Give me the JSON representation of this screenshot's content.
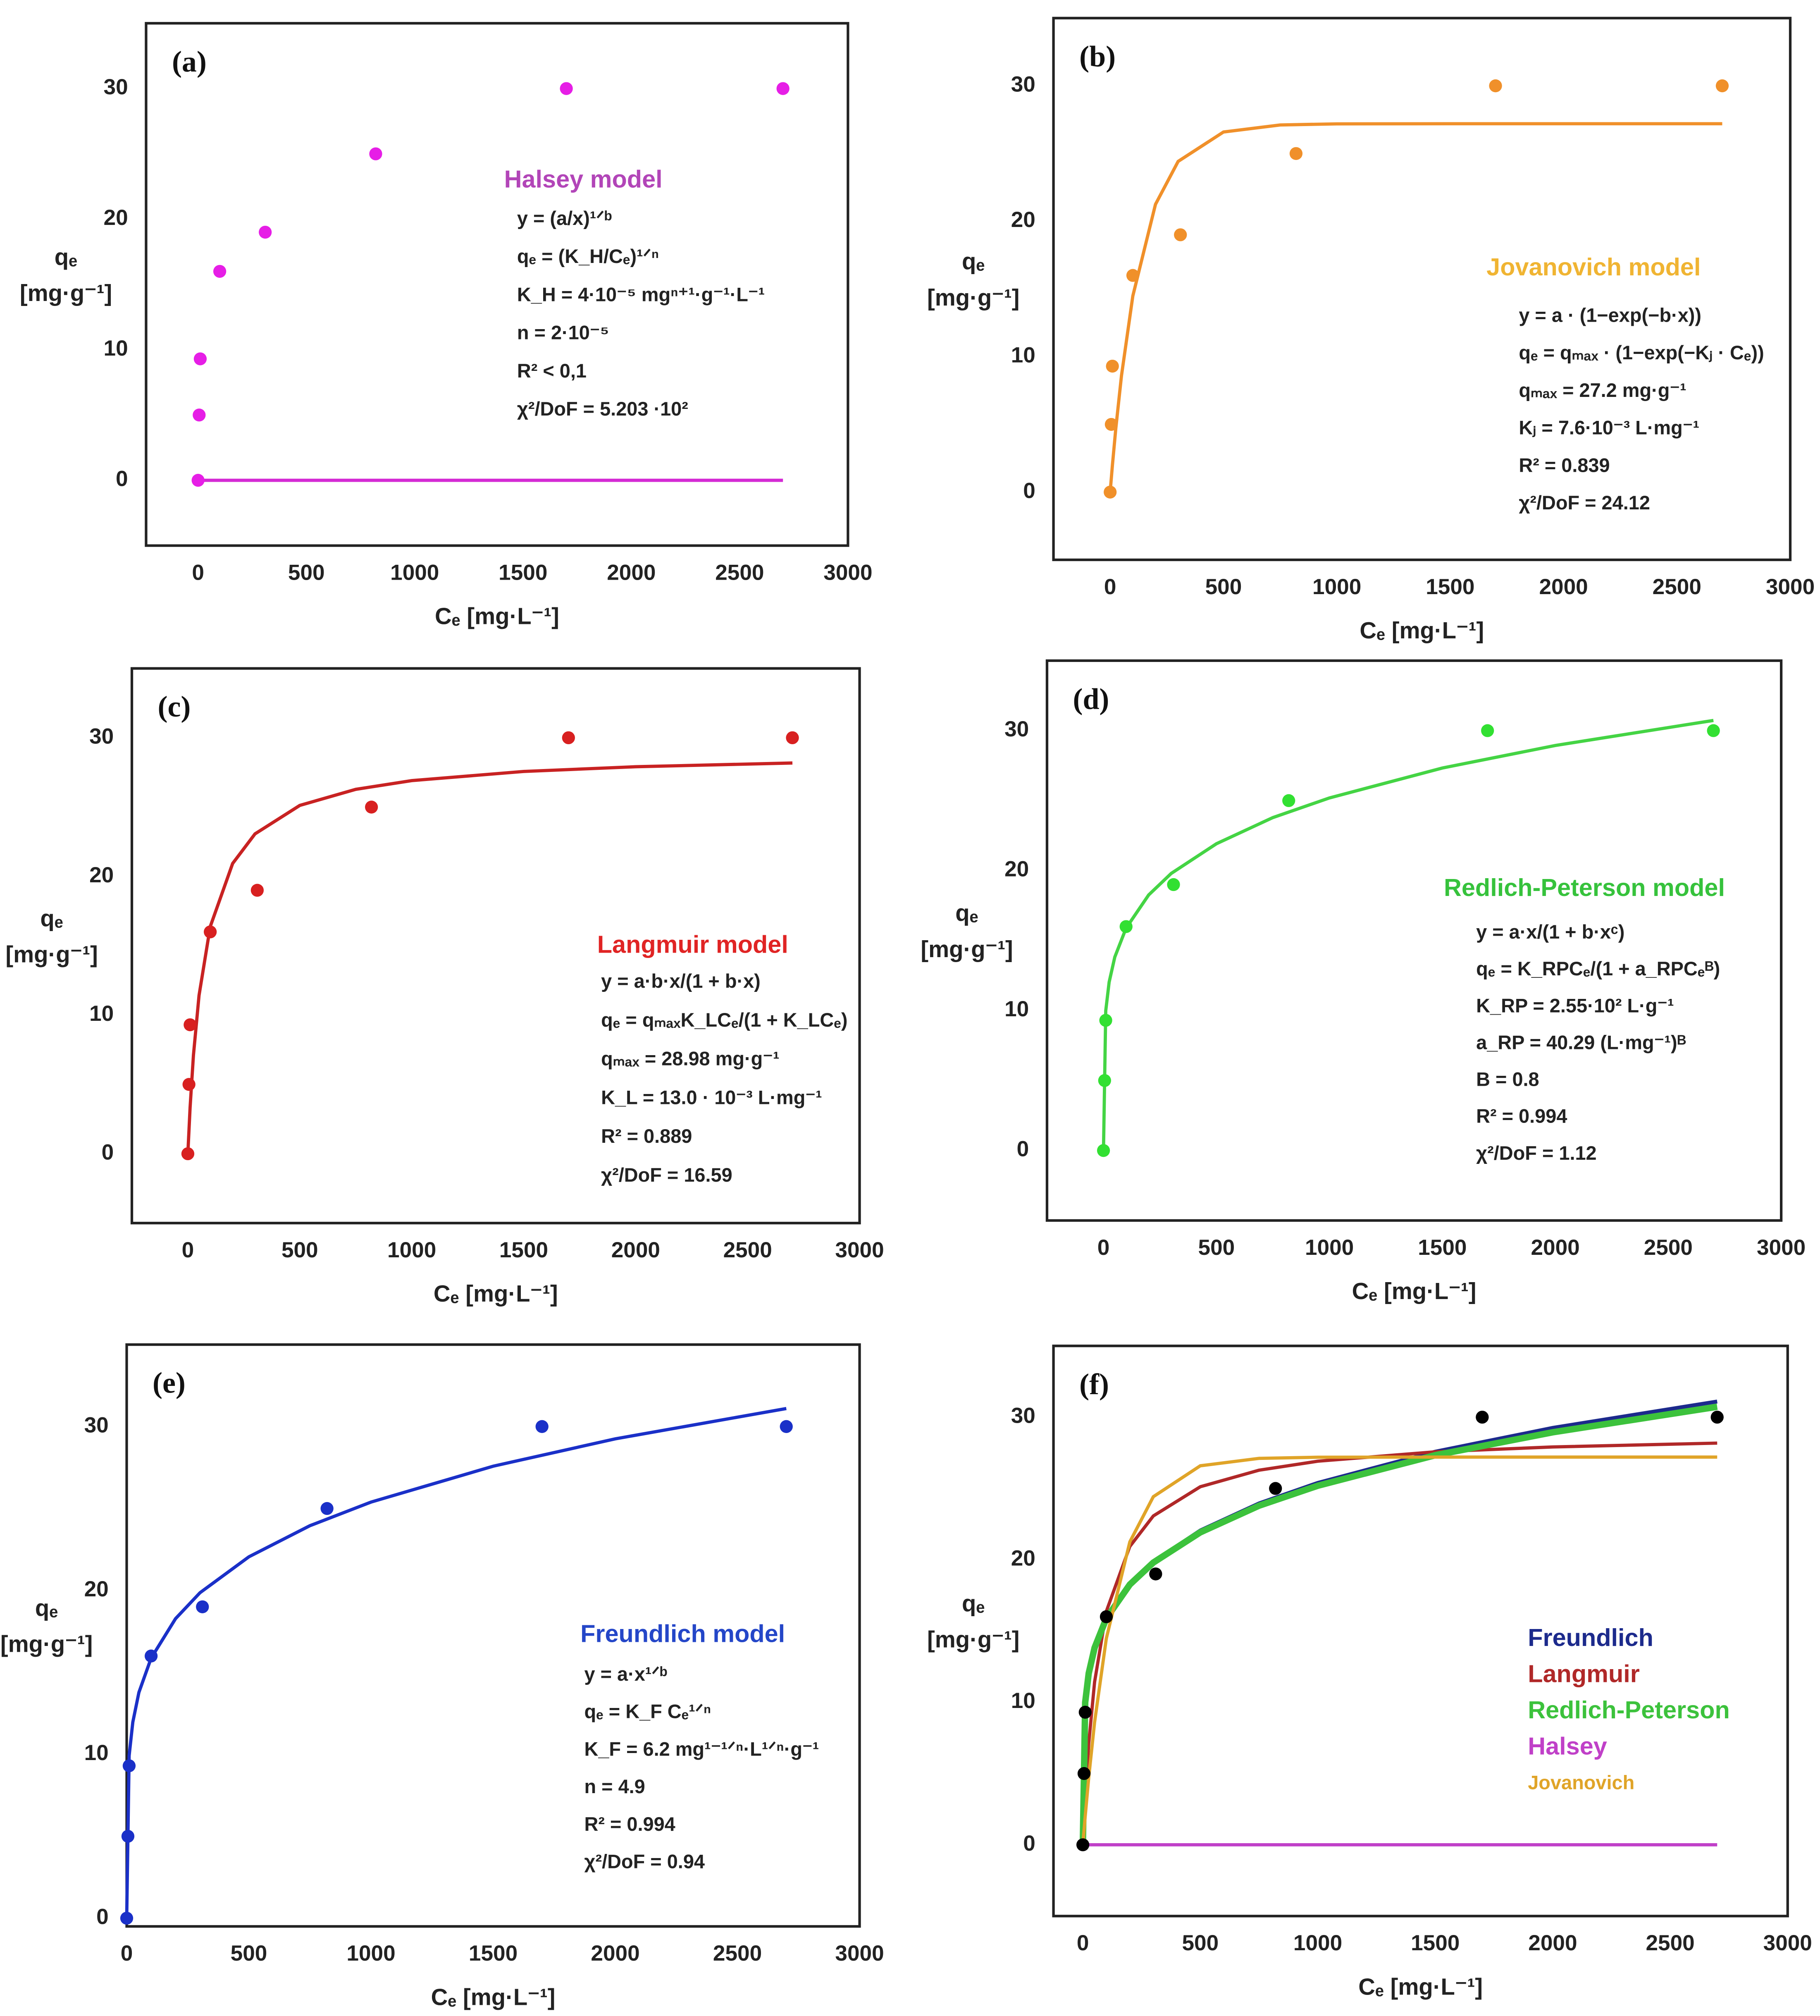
{
  "chart_data": [
    {
      "type": "scatter",
      "label": "(a)",
      "xlabel": "Cₑ [mg·L⁻¹]",
      "ylabel": [
        "qₑ",
        "[mg·g⁻¹]"
      ],
      "xlim": [
        -240,
        3000
      ],
      "ylim": [
        -5,
        35
      ],
      "xticks": [
        0,
        500,
        1000,
        1500,
        2000,
        2500,
        3000
      ],
      "yticks": [
        0,
        10,
        20,
        30
      ],
      "points": {
        "color": "#e61ee6",
        "x": [
          0,
          5,
          10,
          100,
          310,
          820,
          1700,
          2700
        ],
        "values": [
          0,
          5,
          9.3,
          16,
          19,
          25,
          30,
          30
        ]
      },
      "fit": {
        "color": "#d42ad4",
        "x": [
          0,
          2700
        ],
        "values": [
          0,
          0
        ]
      },
      "model": "Halsey model",
      "model_color": "#b245b8",
      "annotations": [
        "y = (a/x)¹ᐟᵇ",
        "qₑ = (K_H/Cₑ)¹ᐟⁿ",
        "K_H = 4·10⁻⁵ mgⁿ⁺¹·g⁻¹·L⁻¹",
        "n = 2·10⁻⁵",
        "R² < 0,1",
        "χ²/DoF = 5.203 ·10²"
      ]
    },
    {
      "type": "scatter",
      "label": "(b)",
      "xlabel": "Cₑ [mg·L⁻¹]",
      "ylabel": [
        "qₑ",
        "[mg·g⁻¹]"
      ],
      "xlim": [
        -250,
        3000
      ],
      "ylim": [
        -5,
        35
      ],
      "xticks": [
        0,
        500,
        1000,
        1500,
        2000,
        2500,
        3000
      ],
      "yticks": [
        0,
        10,
        20,
        30
      ],
      "points": {
        "color": "#f0902a",
        "x": [
          0,
          5,
          10,
          100,
          310,
          820,
          1700,
          2700
        ],
        "values": [
          0,
          5,
          9.3,
          16,
          19,
          25,
          30,
          30
        ]
      },
      "fit": {
        "color": "#f0902a",
        "x": [
          0,
          10,
          25,
          50,
          100,
          200,
          300,
          500,
          750,
          1000,
          1500,
          2000,
          2700
        ],
        "values": [
          0,
          1.99,
          4.71,
          8.6,
          14.48,
          21.25,
          24.42,
          26.59,
          27.11,
          27.19,
          27.2,
          27.2,
          27.2
        ]
      },
      "model": "Jovanovich model",
      "model_color": "#f0b432",
      "annotations": [
        "y = a · (1−exp(−b·x))",
        "qₑ = qₘₐₓ · (1−exp(−Kⱼ · Cₑ))",
        "qₘₐₓ = 27.2 mg·g⁻¹",
        "Kⱼ = 7.6·10⁻³ L·mg⁻¹",
        "R² = 0.839",
        "χ²/DoF = 24.12"
      ]
    },
    {
      "type": "scatter",
      "label": "(c)",
      "xlabel": "Cₑ [mg·L⁻¹]",
      "ylabel": [
        "qₑ",
        "[mg·g⁻¹]"
      ],
      "xlim": [
        -250,
        3000
      ],
      "ylim": [
        -5,
        35
      ],
      "xticks": [
        0,
        500,
        1000,
        1500,
        2000,
        2500,
        3000
      ],
      "yticks": [
        0,
        10,
        20,
        30
      ],
      "points": {
        "color": "#d82020",
        "x": [
          0,
          5,
          10,
          100,
          310,
          820,
          1700,
          2700
        ],
        "values": [
          0,
          5,
          9.3,
          16,
          19,
          25,
          30,
          30
        ]
      },
      "fit": {
        "color": "#c82222",
        "x": [
          0,
          10,
          25,
          50,
          100,
          200,
          300,
          500,
          750,
          1000,
          1500,
          2000,
          2700
        ],
        "values": [
          0,
          3.33,
          7.11,
          11.42,
          16.38,
          20.93,
          23.07,
          25.12,
          26.28,
          26.91,
          27.57,
          27.91,
          28.18
        ]
      },
      "model": "Langmuir model",
      "model_color": "#e02424",
      "annotations": [
        "y = a·b·x/(1 + b·x)",
        "qₑ = qₘₐₓK_LCₑ/(1 + K_LCₑ)",
        "qₘₐₓ = 28.98 mg·g⁻¹",
        "K_L = 13.0 · 10⁻³ L·mg⁻¹",
        "R² = 0.889",
        "χ²/DoF = 16.59"
      ]
    },
    {
      "type": "scatter",
      "label": "(d)",
      "xlabel": "Cₑ [mg·L⁻¹]",
      "ylabel": [
        "qₑ",
        "[mg·g⁻¹]"
      ],
      "xlim": [
        -250,
        3000
      ],
      "ylim": [
        -5,
        35
      ],
      "xticks": [
        0,
        500,
        1000,
        1500,
        2000,
        2500,
        3000
      ],
      "yticks": [
        0,
        10,
        20,
        30
      ],
      "points": {
        "color": "#32e032",
        "x": [
          0,
          5,
          10,
          100,
          310,
          820,
          1700,
          2700
        ],
        "values": [
          0,
          5,
          9.3,
          16,
          19,
          25,
          30,
          30
        ]
      },
      "fit": {
        "color": "#44d444",
        "x": [
          0,
          10,
          25,
          50,
          100,
          200,
          300,
          500,
          750,
          1000,
          1500,
          2000,
          2700
        ],
        "values": [
          0,
          9.99,
          12.03,
          13.82,
          15.89,
          18.26,
          19.8,
          21.92,
          23.79,
          25.19,
          27.33,
          28.94,
          30.73
        ]
      },
      "model": "Redlich-Peterson model",
      "model_color": "#36c23c",
      "annotations": [
        "y = a·x/(1 + b·xᶜ)",
        "qₑ = K_RPCₑ/(1 + a_RPCₑᴮ)",
        "K_RP = 2.55·10² L·g⁻¹",
        "a_RP = 40.29 (L·mg⁻¹)ᴮ",
        "B = 0.8",
        "R² = 0.994",
        "χ²/DoF = 1.12"
      ]
    },
    {
      "type": "scatter",
      "label": "(e)",
      "xlabel": "Cₑ [mg·L⁻¹]",
      "ylabel": [
        "qₑ",
        "[mg·g⁻¹]"
      ],
      "xlim": [
        0,
        3000
      ],
      "ylim": [
        -0.5,
        35
      ],
      "xticks": [
        0,
        500,
        1000,
        1500,
        2000,
        2500,
        3000
      ],
      "yticks": [
        0,
        10,
        20,
        30
      ],
      "points": {
        "color": "#1a30c8",
        "x": [
          0,
          5,
          10,
          100,
          310,
          820,
          1700,
          2700
        ],
        "values": [
          0,
          5,
          9.3,
          16,
          19,
          25,
          30,
          30
        ]
      },
      "fit": {
        "color": "#1a30c8",
        "x": [
          0,
          10,
          25,
          50,
          100,
          200,
          300,
          500,
          750,
          1000,
          1500,
          2000,
          2700
        ],
        "values": [
          0,
          9.92,
          11.96,
          13.78,
          15.87,
          18.28,
          19.86,
          22.05,
          23.95,
          25.39,
          27.58,
          29.25,
          31.1
        ]
      },
      "model": "Freundlich model",
      "model_color": "#2446c8",
      "annotations": [
        "y = a·x¹ᐟᵇ",
        "qₑ = K_F Cₑ¹ᐟⁿ",
        "K_F = 6.2 mg¹⁻¹ᐟⁿ·L¹ᐟⁿ·g⁻¹",
        "n = 4.9",
        "R² = 0.994",
        "χ²/DoF = 0.94"
      ]
    },
    {
      "type": "scatter",
      "label": "(f)",
      "xlabel": "Cₑ [mg·L⁻¹]",
      "ylabel": [
        "qₑ",
        "[mg·g⁻¹]"
      ],
      "xlim": [
        -125,
        3000
      ],
      "ylim": [
        -5,
        35
      ],
      "xticks": [
        0,
        500,
        1000,
        1500,
        2000,
        2500,
        3000
      ],
      "yticks": [
        0,
        10,
        20,
        30
      ],
      "points": {
        "color": "#000000",
        "x": [
          0,
          5,
          10,
          100,
          310,
          820,
          1700,
          2700
        ],
        "values": [
          0,
          5,
          9.3,
          16,
          19,
          25,
          30,
          30
        ]
      },
      "series": [
        {
          "name": "Freundlich",
          "color": "#1c2a8c",
          "x": [
            0,
            10,
            25,
            50,
            100,
            200,
            300,
            500,
            750,
            1000,
            1500,
            2000,
            2700
          ],
          "values": [
            0,
            9.92,
            11.96,
            13.78,
            15.87,
            18.28,
            19.86,
            22.05,
            23.95,
            25.39,
            27.58,
            29.25,
            31.1
          ]
        },
        {
          "name": "Langmuir",
          "color": "#b02828",
          "x": [
            0,
            10,
            25,
            50,
            100,
            200,
            300,
            500,
            750,
            1000,
            1500,
            2000,
            2700
          ],
          "values": [
            0,
            3.33,
            7.11,
            11.42,
            16.38,
            20.93,
            23.07,
            25.12,
            26.28,
            26.91,
            27.57,
            27.91,
            28.18
          ]
        },
        {
          "name": "Redlich-Peterson",
          "color": "#3cc23c",
          "x": [
            0,
            10,
            25,
            50,
            100,
            200,
            300,
            500,
            750,
            1000,
            1500,
            2000,
            2700
          ],
          "values": [
            0,
            9.99,
            12.03,
            13.82,
            15.89,
            18.26,
            19.8,
            21.92,
            23.79,
            25.19,
            27.33,
            28.94,
            30.73
          ]
        },
        {
          "name": "Halsey",
          "color": "#c040c8",
          "x": [
            0,
            2700
          ],
          "values": [
            0,
            0
          ]
        },
        {
          "name": "Jovanovich",
          "color": "#e0a428",
          "x": [
            0,
            10,
            25,
            50,
            100,
            200,
            300,
            500,
            750,
            1000,
            1500,
            2000,
            2700
          ],
          "values": [
            0,
            1.99,
            4.71,
            8.6,
            14.48,
            21.25,
            24.42,
            26.59,
            27.11,
            27.19,
            27.2,
            27.2,
            27.2
          ]
        }
      ]
    }
  ]
}
